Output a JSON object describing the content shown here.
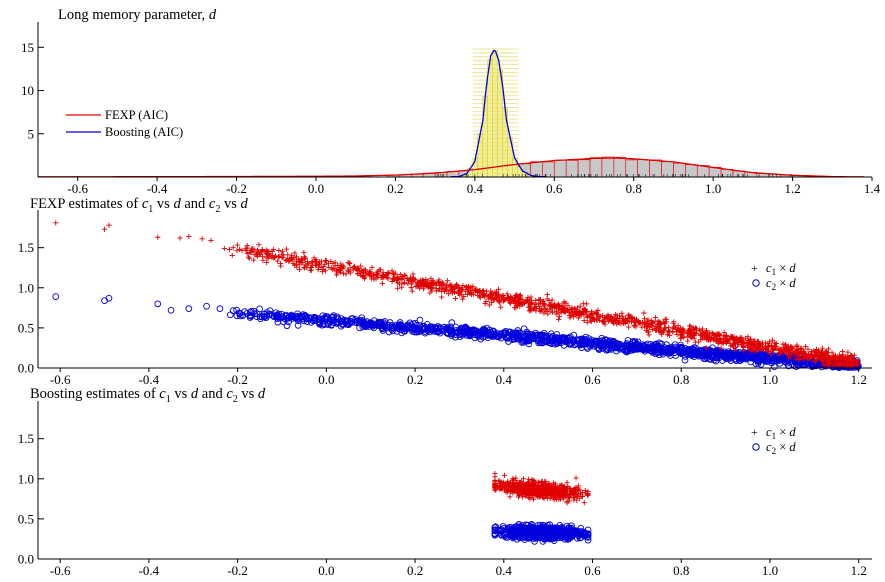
{
  "colors": {
    "fexp": "#e00000",
    "boosting": "#0000dd",
    "fexp_fill": "#c8c8c8",
    "boosting_fill": "#f4f090",
    "axis": "#000000"
  },
  "chart_data": [
    {
      "type": "area",
      "title": "Long memory parameter, d",
      "title_parts": {
        "text": "Long memory parameter, ",
        "var": "d"
      },
      "xlabel": "",
      "ylabel": "",
      "xlim": [
        -0.7,
        1.4
      ],
      "ylim": [
        0,
        17
      ],
      "x_ticks": [
        "-0.6",
        "-0.4",
        "-0.2",
        "0.0",
        "0.2",
        "0.4",
        "0.6",
        "0.8",
        "1.0",
        "1.2",
        "1.4"
      ],
      "y_ticks": [
        "5",
        "10",
        "15"
      ],
      "legend_placement": "left",
      "series": [
        {
          "name": "FEXP (AIC)",
          "kind": "density_histogram",
          "color": "#e00000",
          "x": [
            -0.6,
            -0.4,
            -0.2,
            0.0,
            0.1,
            0.2,
            0.3,
            0.4,
            0.5,
            0.6,
            0.7,
            0.75,
            0.8,
            0.9,
            1.0,
            1.1,
            1.2,
            1.3,
            1.35
          ],
          "y": [
            0.02,
            0.04,
            0.06,
            0.08,
            0.12,
            0.22,
            0.45,
            0.85,
            1.45,
            1.9,
            2.15,
            2.2,
            2.1,
            1.75,
            1.1,
            0.5,
            0.2,
            0.05,
            0.02
          ]
        },
        {
          "name": "Boosting (AIC)",
          "kind": "density_histogram",
          "color": "#0000dd",
          "x": [
            0.36,
            0.38,
            0.4,
            0.42,
            0.43,
            0.44,
            0.45,
            0.46,
            0.47,
            0.48,
            0.5,
            0.52,
            0.54,
            0.56
          ],
          "y": [
            0.05,
            0.4,
            1.8,
            6.5,
            11.0,
            14.0,
            14.8,
            13.5,
            10.5,
            6.5,
            2.2,
            0.7,
            0.2,
            0.03
          ]
        }
      ]
    },
    {
      "type": "scatter",
      "title": "FEXP estimates of c1 vs d and c2 vs d",
      "title_parts": {
        "a": "FEXP estimates of ",
        "c": "c",
        "s1": "1",
        "vs": " vs ",
        "d": "d",
        "and": " and ",
        "s2": "2"
      },
      "xlim": [
        -0.65,
        1.23
      ],
      "ylim": [
        0,
        1.87
      ],
      "x_ticks": [
        "-0.6",
        "-0.4",
        "-0.2",
        "0.0",
        "0.2",
        "0.4",
        "0.6",
        "0.8",
        "1.0",
        "1.2"
      ],
      "y_ticks": [
        "0.0",
        "0.5",
        "1.0",
        "1.5"
      ],
      "legend_placement": "right",
      "legend": [
        {
          "c": "c",
          "sub": "1",
          "rest": " × ",
          "d": "d"
        },
        {
          "c": "c",
          "sub": "2",
          "rest": " × ",
          "d": "d"
        }
      ],
      "series": [
        {
          "name": "c1 × d",
          "marker": "+",
          "color": "#e00000",
          "outliers": [
            [
              -0.61,
              1.81
            ],
            [
              -0.5,
              1.73
            ],
            [
              -0.49,
              1.78
            ],
            [
              -0.38,
              1.63
            ],
            [
              -0.33,
              1.62
            ],
            [
              -0.31,
              1.64
            ],
            [
              -0.28,
              1.61
            ],
            [
              -0.26,
              1.59
            ],
            [
              -0.23,
              1.49
            ],
            [
              -0.21,
              1.5
            ]
          ],
          "trend": {
            "x_start": -0.22,
            "x_end": 1.2,
            "y_at_start": 1.5,
            "y_at_end": 0.05,
            "spread": 0.09
          }
        },
        {
          "name": "c2 × d",
          "marker": "o",
          "color": "#0000dd",
          "outliers": [
            [
              -0.61,
              0.89
            ],
            [
              -0.5,
              0.84
            ],
            [
              -0.49,
              0.87
            ],
            [
              -0.38,
              0.8
            ],
            [
              -0.35,
              0.72
            ],
            [
              -0.31,
              0.74
            ],
            [
              -0.27,
              0.77
            ],
            [
              -0.24,
              0.74
            ]
          ],
          "trend": {
            "x_start": -0.22,
            "x_end": 1.2,
            "y_at_start": 0.7,
            "y_at_end": 0.02,
            "spread": 0.06
          }
        }
      ]
    },
    {
      "type": "scatter",
      "title": "Boosting estimates of c1 vs d and c2 vs d",
      "title_parts": {
        "a": "Boosting estimates of ",
        "c": "c",
        "s1": "1",
        "vs": " vs ",
        "d": "d",
        "and": " and ",
        "s2": "2"
      },
      "xlim": [
        -0.65,
        1.23
      ],
      "ylim": [
        0,
        1.87
      ],
      "x_ticks": [
        "-0.6",
        "-0.4",
        "-0.2",
        "0.0",
        "0.2",
        "0.4",
        "0.6",
        "0.8",
        "1.0",
        "1.2"
      ],
      "y_ticks": [
        "0.0",
        "0.5",
        "1.0",
        "1.5"
      ],
      "legend_placement": "top-right",
      "legend": [
        {
          "c": "c",
          "sub": "1",
          "rest": " × ",
          "d": "d"
        },
        {
          "c": "c",
          "sub": "2",
          "rest": " × ",
          "d": "d"
        }
      ],
      "series": [
        {
          "name": "c1 × d",
          "marker": "+",
          "color": "#e00000",
          "cluster": {
            "x_range": [
              0.38,
              0.59
            ],
            "y_center": 0.86,
            "y_spread": 0.13
          }
        },
        {
          "name": "c2 × d",
          "marker": "o",
          "color": "#0000dd",
          "cluster": {
            "x_range": [
              0.38,
              0.59
            ],
            "y_center": 0.33,
            "y_spread": 0.11
          }
        }
      ]
    }
  ]
}
